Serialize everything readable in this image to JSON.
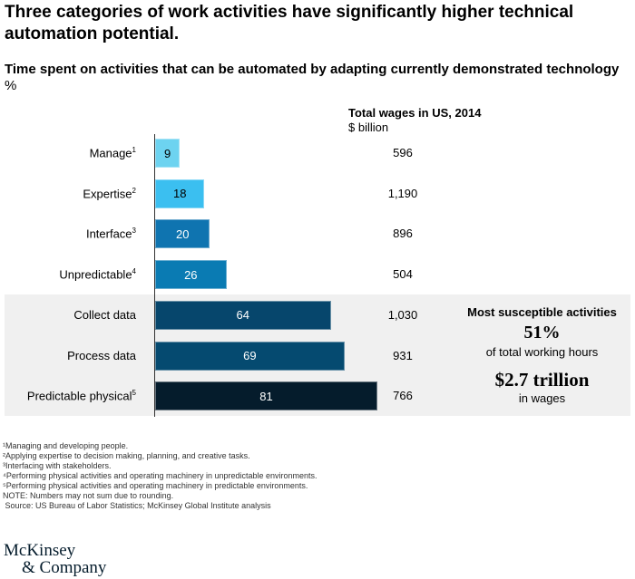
{
  "title": "Three categories of work activities have significantly higher technical automation potential.",
  "subtitle": "Time spent on activities that can be automated by adapting currently demonstrated technology",
  "unit": "%",
  "wages_header": {
    "title": "Total wages in US, 2014",
    "unit": "$ billion"
  },
  "chart_data": {
    "type": "bar",
    "orientation": "horizontal",
    "title": "Time spent on activities that can be automated by adapting currently demonstrated technology",
    "ylabel": "%",
    "categories": [
      "Manage",
      "Expertise",
      "Interface",
      "Unpredictable",
      "Collect data",
      "Process data",
      "Predictable physical"
    ],
    "superscripts": [
      "1",
      "2",
      "3",
      "4",
      "",
      "",
      "5"
    ],
    "values": [
      9,
      18,
      20,
      26,
      64,
      69,
      81
    ],
    "value_labels": [
      "9",
      "18",
      "20",
      "26",
      "64",
      "69",
      "81"
    ],
    "wages_billion": [
      "596",
      "1,190",
      "896",
      "504",
      "1,030",
      "931",
      "766"
    ],
    "colors": [
      "#6dd3f0",
      "#3bbff0",
      "#0f74b0",
      "#0a7bb3",
      "#06466c",
      "#054a70",
      "#051c2c"
    ],
    "label_colors": [
      "#000",
      "#000",
      "#fff",
      "#fff",
      "#fff",
      "#fff",
      "#fff"
    ],
    "highlighted": [
      4,
      5,
      6
    ],
    "xlim": [
      0,
      81
    ]
  },
  "callout": {
    "heading": "Most susceptible activities",
    "stat1": "51%",
    "stat1_label": "of total working hours",
    "stat2": "$2.7 trillion",
    "stat2_label": "in wages"
  },
  "footnotes": [
    "¹Managing and developing people.",
    "²Applying expertise to decision making, planning, and creative tasks.",
    "³Interfacing with stakeholders.",
    "⁴Performing physical activities and operating machinery in unpredictable environments.",
    "⁵Performing physical activities and operating machinery in predictable environments.",
    "NOTE: Numbers may not sum due to rounding.",
    " Source: US Bureau of Labor Statistics; McKinsey Global Institute analysis"
  ],
  "logo": {
    "line1": "McKinsey",
    "line2": "& Company"
  }
}
